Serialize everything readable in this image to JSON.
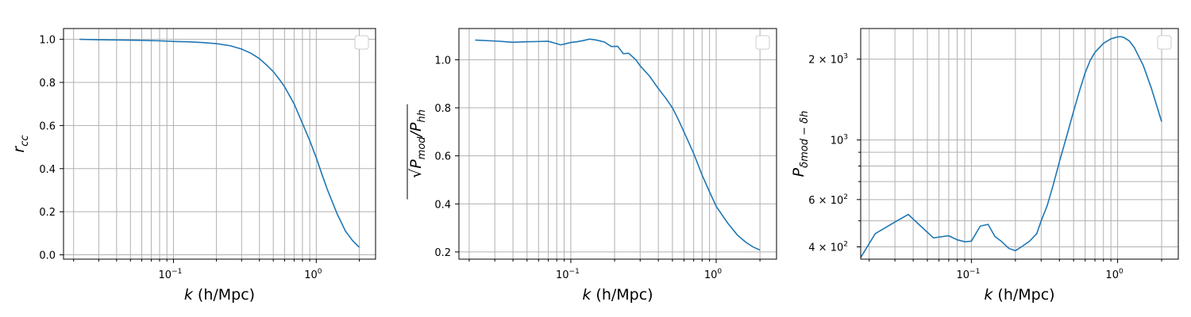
{
  "chart_data": [
    {
      "type": "line",
      "xscale": "log",
      "yscale": "linear",
      "xlim": [
        0.017,
        2.6
      ],
      "ylim": [
        -0.02,
        1.05
      ],
      "xlabel_italic": "k",
      "xlabel_unit": " (h/Mpc)",
      "ylabel_base": "r",
      "ylabel_sub": "cc",
      "x_ticks": [
        {
          "v": 0.1,
          "mant": "10",
          "exp": "−1"
        },
        {
          "v": 1,
          "mant": "10",
          "exp": "0"
        }
      ],
      "y_ticks": [
        {
          "v": 0.0,
          "label": "0.0"
        },
        {
          "v": 0.2,
          "label": "0.2"
        },
        {
          "v": 0.4,
          "label": "0.4"
        },
        {
          "v": 0.6,
          "label": "0.6"
        },
        {
          "v": 0.8,
          "label": "0.8"
        },
        {
          "v": 1.0,
          "label": "1.0"
        }
      ],
      "grid": true,
      "legend": "top-right (empty)",
      "series": [
        {
          "name": "",
          "x": [
            0.022,
            0.03,
            0.05,
            0.08,
            0.1,
            0.13,
            0.16,
            0.2,
            0.25,
            0.3,
            0.35,
            0.4,
            0.45,
            0.5,
            0.55,
            0.6,
            0.7,
            0.8,
            0.9,
            1.0,
            1.1,
            1.2,
            1.4,
            1.6,
            1.8,
            2.0
          ],
          "y": [
            1.0,
            0.998,
            0.996,
            0.993,
            0.99,
            0.988,
            0.985,
            0.98,
            0.97,
            0.955,
            0.935,
            0.91,
            0.88,
            0.85,
            0.815,
            0.78,
            0.7,
            0.61,
            0.53,
            0.45,
            0.37,
            0.3,
            0.19,
            0.11,
            0.065,
            0.035
          ]
        }
      ]
    },
    {
      "type": "line",
      "xscale": "log",
      "yscale": "linear",
      "xlim": [
        0.017,
        2.6
      ],
      "ylim": [
        0.17,
        1.13
      ],
      "xlabel_italic": "k",
      "xlabel_unit": " (h/Mpc)",
      "ylabel_base": "√P",
      "ylabel_num_sub": "mod",
      "ylabel_slash": "/P",
      "ylabel_den_sub": "hh",
      "x_ticks": [
        {
          "v": 0.1,
          "mant": "10",
          "exp": "−1"
        },
        {
          "v": 1,
          "mant": "10",
          "exp": "0"
        }
      ],
      "y_ticks": [
        {
          "v": 0.2,
          "label": "0.2"
        },
        {
          "v": 0.4,
          "label": "0.4"
        },
        {
          "v": 0.6,
          "label": "0.6"
        },
        {
          "v": 0.8,
          "label": "0.8"
        },
        {
          "v": 1.0,
          "label": "1.0"
        }
      ],
      "grid": true,
      "legend": "top-right (empty)",
      "series": [
        {
          "name": "",
          "x": [
            0.022,
            0.03,
            0.04,
            0.05,
            0.06,
            0.07,
            0.08,
            0.085,
            0.09,
            0.1,
            0.11,
            0.12,
            0.135,
            0.15,
            0.17,
            0.19,
            0.21,
            0.23,
            0.25,
            0.28,
            0.3,
            0.35,
            0.4,
            0.45,
            0.5,
            0.55,
            0.6,
            0.7,
            0.8,
            0.9,
            1.0,
            1.2,
            1.4,
            1.6,
            1.8,
            2.0
          ],
          "y": [
            1.082,
            1.078,
            1.073,
            1.075,
            1.076,
            1.077,
            1.067,
            1.062,
            1.065,
            1.072,
            1.075,
            1.079,
            1.086,
            1.082,
            1.074,
            1.055,
            1.056,
            1.025,
            1.027,
            1.0,
            0.975,
            0.93,
            0.88,
            0.84,
            0.8,
            0.75,
            0.7,
            0.61,
            0.52,
            0.45,
            0.39,
            0.32,
            0.27,
            0.24,
            0.22,
            0.208
          ]
        }
      ]
    },
    {
      "type": "line",
      "xscale": "log",
      "yscale": "log",
      "xlim": [
        0.0175,
        2.6
      ],
      "ylim": [
        360,
        2600
      ],
      "xlabel_italic": "k",
      "xlabel_unit": " (h/Mpc)",
      "ylabel_base": "P",
      "ylabel_sub": "δmod − δh",
      "x_ticks": [
        {
          "v": 0.1,
          "mant": "10",
          "exp": "−1"
        },
        {
          "v": 1,
          "mant": "10",
          "exp": "0"
        }
      ],
      "y_major_ticks": [
        {
          "v": 400,
          "mant": "4 × 10",
          "exp": "2"
        },
        {
          "v": 600,
          "mant": "6 × 10",
          "exp": "2"
        },
        {
          "v": 1000,
          "mant": "10",
          "exp": "3"
        },
        {
          "v": 2000,
          "mant": "2 × 10",
          "exp": "3"
        }
      ],
      "y_minor_ticks": [
        500,
        700,
        800,
        900
      ],
      "grid": true,
      "legend": "top-right (empty)",
      "series": [
        {
          "name": "",
          "x": [
            0.0175,
            0.022,
            0.03,
            0.037,
            0.045,
            0.055,
            0.07,
            0.08,
            0.09,
            0.1,
            0.115,
            0.13,
            0.145,
            0.16,
            0.18,
            0.2,
            0.22,
            0.25,
            0.28,
            0.3,
            0.33,
            0.36,
            0.4,
            0.45,
            0.5,
            0.55,
            0.6,
            0.65,
            0.7,
            0.8,
            0.9,
            1.0,
            1.05,
            1.1,
            1.2,
            1.3,
            1.5,
            1.7,
            2.0
          ],
          "y": [
            365,
            448,
            495,
            528,
            478,
            432,
            440,
            425,
            418,
            420,
            478,
            485,
            437,
            420,
            395,
            387,
            400,
            420,
            448,
            500,
            570,
            670,
            830,
            1040,
            1280,
            1530,
            1780,
            1980,
            2120,
            2290,
            2380,
            2420,
            2425,
            2410,
            2340,
            2210,
            1890,
            1560,
            1170
          ]
        }
      ]
    }
  ]
}
